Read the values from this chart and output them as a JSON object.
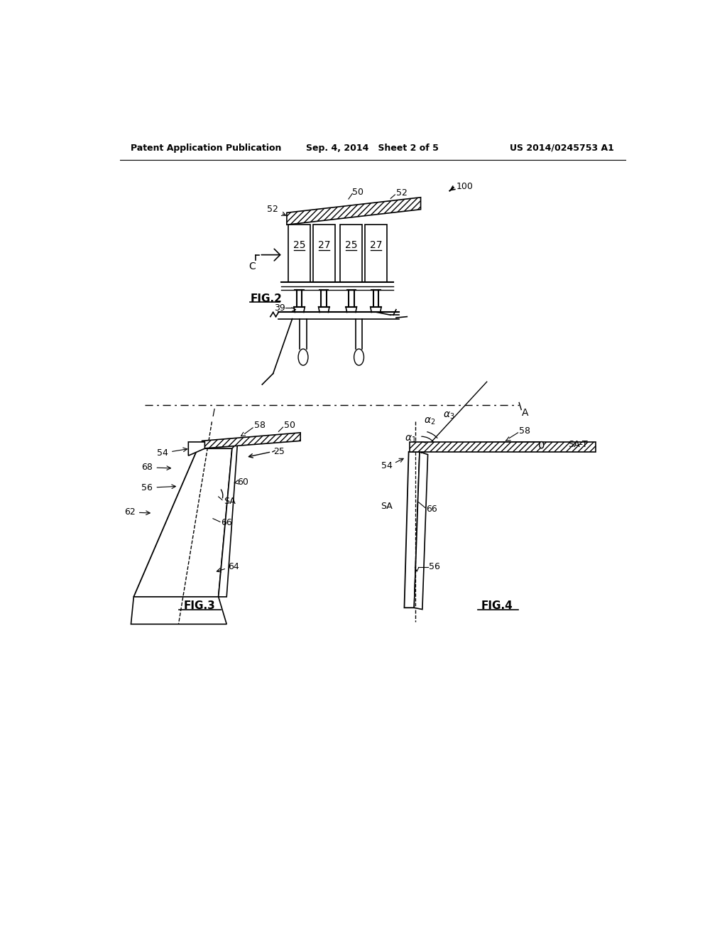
{
  "bg_color": "#ffffff",
  "header_left": "Patent Application Publication",
  "header_center": "Sep. 4, 2014   Sheet 2 of 5",
  "header_right": "US 2014/0245753 A1",
  "fig2_label": "FIG.2",
  "fig3_label": "FIG.3",
  "fig4_label": "FIG.4"
}
